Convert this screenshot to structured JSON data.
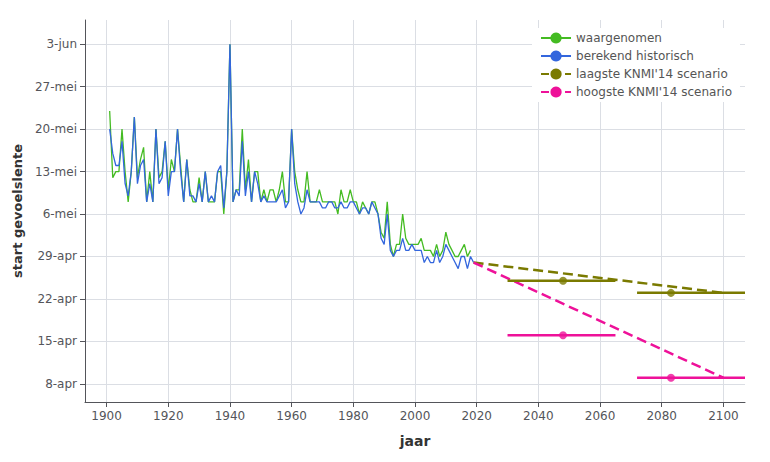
{
  "chart_data": {
    "type": "line",
    "xlabel": "jaar",
    "ylabel": "start gevoelslente",
    "xlim": [
      1893,
      2107
    ],
    "ylim": [
      95,
      158
    ],
    "xticks": [
      1900,
      1920,
      1940,
      1960,
      1980,
      2000,
      2020,
      2040,
      2060,
      2080,
      2100
    ],
    "yticks": [
      {
        "value": 98,
        "label": "8-apr"
      },
      {
        "value": 105,
        "label": "15-apr"
      },
      {
        "value": 112,
        "label": "22-apr"
      },
      {
        "value": 119,
        "label": "29-apr"
      },
      {
        "value": 126,
        "label": "6-mei"
      },
      {
        "value": 133,
        "label": "13-mei"
      },
      {
        "value": 140,
        "label": "20-mei"
      },
      {
        "value": 147,
        "label": "27-mei"
      },
      {
        "value": 154,
        "label": "3-jun"
      }
    ],
    "grid": true,
    "legend": "upper right",
    "series": [
      {
        "name": "waargenomen",
        "color": "#44bb22",
        "line_style": "solid",
        "x": [
          1901,
          1902,
          1903,
          1904,
          1905,
          1906,
          1907,
          1908,
          1909,
          1910,
          1911,
          1912,
          1913,
          1914,
          1915,
          1916,
          1917,
          1918,
          1919,
          1920,
          1921,
          1922,
          1923,
          1924,
          1925,
          1926,
          1927,
          1928,
          1929,
          1930,
          1931,
          1932,
          1933,
          1934,
          1935,
          1936,
          1937,
          1938,
          1939,
          1940,
          1941,
          1942,
          1943,
          1944,
          1945,
          1946,
          1947,
          1948,
          1949,
          1950,
          1951,
          1952,
          1953,
          1954,
          1955,
          1956,
          1957,
          1958,
          1959,
          1960,
          1961,
          1962,
          1963,
          1964,
          1965,
          1966,
          1967,
          1968,
          1969,
          1970,
          1971,
          1972,
          1973,
          1974,
          1975,
          1976,
          1977,
          1978,
          1979,
          1980,
          1981,
          1982,
          1983,
          1984,
          1985,
          1986,
          1987,
          1988,
          1989,
          1990,
          1991,
          1992,
          1993,
          1994,
          1995,
          1996,
          1997,
          1998,
          1999,
          2000,
          2001,
          2002,
          2003,
          2004,
          2005,
          2006,
          2007,
          2008,
          2009,
          2010,
          2011,
          2012,
          2013,
          2014,
          2015,
          2016,
          2017,
          2018
        ],
        "values": [
          143,
          132,
          133,
          133,
          140,
          133,
          128,
          133,
          142,
          132,
          135,
          137,
          128,
          133,
          128,
          140,
          132,
          133,
          138,
          130,
          135,
          133,
          140,
          134,
          128,
          135,
          130,
          128,
          128,
          132,
          128,
          133,
          128,
          128,
          128,
          133,
          133,
          126,
          133,
          154,
          128,
          130,
          130,
          140,
          130,
          135,
          128,
          133,
          133,
          128,
          130,
          128,
          130,
          130,
          128,
          130,
          133,
          128,
          128,
          140,
          133,
          130,
          128,
          128,
          133,
          128,
          128,
          128,
          130,
          128,
          128,
          128,
          128,
          128,
          126,
          130,
          128,
          128,
          130,
          128,
          128,
          126,
          128,
          127,
          126,
          128,
          128,
          126,
          123,
          122,
          128,
          121,
          119,
          121,
          121,
          126,
          122,
          121,
          121,
          121,
          121,
          122,
          120,
          120,
          120,
          119,
          121,
          119,
          120,
          123,
          121,
          120,
          119,
          119,
          120,
          121,
          119,
          120
        ]
      },
      {
        "name": "berekend historisch",
        "color": "#3366dd",
        "line_style": "solid",
        "x": [
          1901,
          1902,
          1903,
          1904,
          1905,
          1906,
          1907,
          1908,
          1909,
          1910,
          1911,
          1912,
          1913,
          1914,
          1915,
          1916,
          1917,
          1918,
          1919,
          1920,
          1921,
          1922,
          1923,
          1924,
          1925,
          1926,
          1927,
          1928,
          1929,
          1930,
          1931,
          1932,
          1933,
          1934,
          1935,
          1936,
          1937,
          1938,
          1939,
          1940,
          1941,
          1942,
          1943,
          1944,
          1945,
          1946,
          1947,
          1948,
          1949,
          1950,
          1951,
          1952,
          1953,
          1954,
          1955,
          1956,
          1957,
          1958,
          1959,
          1960,
          1961,
          1962,
          1963,
          1964,
          1965,
          1966,
          1967,
          1968,
          1969,
          1970,
          1971,
          1972,
          1973,
          1974,
          1975,
          1976,
          1977,
          1978,
          1979,
          1980,
          1981,
          1982,
          1983,
          1984,
          1985,
          1986,
          1987,
          1988,
          1989,
          1990,
          1991,
          1992,
          1993,
          1994,
          1995,
          1996,
          1997,
          1998,
          1999,
          2000,
          2001,
          2002,
          2003,
          2004,
          2005,
          2006,
          2007,
          2008,
          2009,
          2010,
          2011,
          2012,
          2013,
          2014,
          2015,
          2016,
          2017,
          2018,
          2019
        ],
        "values": [
          140,
          136,
          134,
          134,
          138,
          131,
          129,
          133,
          142,
          131,
          134,
          135,
          128,
          131,
          128,
          140,
          131,
          132,
          138,
          129,
          133,
          133,
          140,
          133,
          128,
          135,
          129,
          129,
          128,
          131,
          128,
          133,
          128,
          129,
          128,
          133,
          134,
          127,
          133,
          154,
          128,
          130,
          129,
          138,
          129,
          133,
          128,
          133,
          131,
          128,
          129,
          128,
          128,
          128,
          128,
          129,
          130,
          127,
          128,
          140,
          131,
          128,
          126,
          127,
          130,
          128,
          128,
          128,
          128,
          127,
          127,
          128,
          128,
          127,
          127,
          128,
          127,
          127,
          128,
          128,
          127,
          126,
          127,
          127,
          126,
          128,
          127,
          126,
          122,
          121,
          126,
          120,
          119,
          120,
          120,
          122,
          120,
          120,
          121,
          120,
          120,
          120,
          118,
          119,
          118,
          118,
          120,
          118,
          119,
          121,
          120,
          119,
          118,
          117,
          119,
          119,
          117,
          119,
          118
        ]
      },
      {
        "name": "laagste KNMI'14 scenario",
        "color": "#7a7a00",
        "line_style": "dashed",
        "x": [
          2019,
          2100
        ],
        "values": [
          118,
          113
        ],
        "ranges": [
          {
            "x": [
              2030,
              2065
            ],
            "y": 115,
            "dot": 2048
          },
          {
            "x": [
              2072,
              2107
            ],
            "y": 113,
            "dot": 2083
          }
        ]
      },
      {
        "name": "hoogste KNMI'14 scenario",
        "color": "#ee1199",
        "line_style": "dashed",
        "x": [
          2019,
          2100
        ],
        "values": [
          118,
          99
        ],
        "ranges": [
          {
            "x": [
              2030,
              2065
            ],
            "y": 106,
            "dot": 2048
          },
          {
            "x": [
              2072,
              2107
            ],
            "y": 99,
            "dot": 2083
          }
        ]
      }
    ]
  }
}
